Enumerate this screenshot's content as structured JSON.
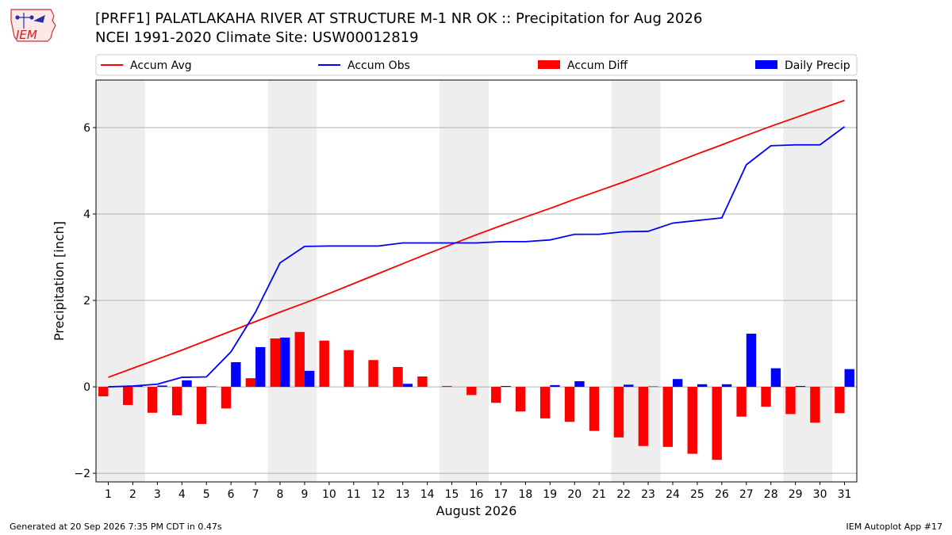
{
  "header": {
    "title_line1": "[PRFF1] PALATLAKAHA RIVER AT STRUCTURE M-1 NR OK :: Precipitation for Aug 2026",
    "title_line2": "NCEI 1991-2020 Climate Site: USW00012819"
  },
  "logo": {
    "text": "IEM",
    "icon": "iem-logo-icon"
  },
  "footer": {
    "generated": "Generated at 20 Sep 2026 7:35 PM CDT in 0.47s",
    "app": "IEM Autoplot App #17"
  },
  "colors": {
    "accum_avg": "#ff0000",
    "accum_obs": "#0000ff",
    "accum_diff": "#ff0000",
    "daily_precip": "#0000ff",
    "weekend_band": "#eeeeee",
    "grid": "#b0b0b0"
  },
  "chart_data": {
    "type": "bar",
    "xlabel": "August 2026",
    "ylabel": "Precipitation [inch]",
    "ylim": [
      -2.2,
      7.1
    ],
    "yticks": [
      -2,
      0,
      2,
      4,
      6
    ],
    "xlim": [
      0.5,
      31.5
    ],
    "grid": "horizontal",
    "legend": {
      "position": "top",
      "entries": [
        "Accum Avg",
        "Accum Obs",
        "Accum Diff",
        "Daily Precip"
      ]
    },
    "categories": [
      1,
      2,
      3,
      4,
      5,
      6,
      7,
      8,
      9,
      10,
      11,
      12,
      13,
      14,
      15,
      16,
      17,
      18,
      19,
      20,
      21,
      22,
      23,
      24,
      25,
      26,
      27,
      28,
      29,
      30,
      31
    ],
    "shaded_days": [
      [
        1,
        2
      ],
      [
        8,
        9
      ],
      [
        15,
        16
      ],
      [
        22,
        23
      ],
      [
        29,
        30
      ]
    ],
    "series": [
      {
        "name": "Accum Avg",
        "type": "line",
        "values": [
          0.22,
          0.43,
          0.64,
          0.85,
          1.07,
          1.29,
          1.51,
          1.73,
          1.94,
          2.16,
          2.39,
          2.62,
          2.85,
          3.08,
          3.3,
          3.52,
          3.73,
          3.93,
          4.13,
          4.34,
          4.54,
          4.74,
          4.95,
          5.17,
          5.39,
          5.6,
          5.82,
          6.03,
          6.23,
          6.43,
          6.63
        ]
      },
      {
        "name": "Accum Obs",
        "type": "line",
        "values": [
          0.0,
          0.02,
          0.06,
          0.22,
          0.23,
          0.81,
          1.73,
          2.87,
          3.25,
          3.26,
          3.26,
          3.26,
          3.33,
          3.33,
          3.33,
          3.33,
          3.36,
          3.36,
          3.4,
          3.53,
          3.53,
          3.59,
          3.6,
          3.79,
          3.85,
          3.91,
          5.14,
          5.58,
          5.6,
          5.6,
          6.02
        ]
      },
      {
        "name": "Accum Diff",
        "type": "bar",
        "values": [
          -0.22,
          -0.42,
          -0.6,
          -0.66,
          -0.86,
          -0.5,
          0.2,
          1.12,
          1.27,
          1.07,
          0.85,
          0.62,
          0.46,
          0.24,
          0.02,
          -0.19,
          -0.37,
          -0.57,
          -0.73,
          -0.81,
          -1.02,
          -1.17,
          -1.37,
          -1.39,
          -1.55,
          -1.69,
          -0.69,
          -0.46,
          -0.63,
          -0.83,
          -0.61
        ]
      },
      {
        "name": "Daily Precip",
        "type": "bar",
        "values": [
          0.0,
          0.02,
          0.03,
          0.15,
          0.01,
          0.57,
          0.92,
          1.14,
          0.37,
          0.0,
          0.0,
          0.0,
          0.07,
          0.0,
          0.0,
          0.0,
          0.02,
          0.0,
          0.04,
          0.13,
          0.0,
          0.05,
          0.01,
          0.18,
          0.06,
          0.06,
          1.23,
          0.43,
          0.02,
          0.0,
          0.41
        ]
      }
    ]
  }
}
